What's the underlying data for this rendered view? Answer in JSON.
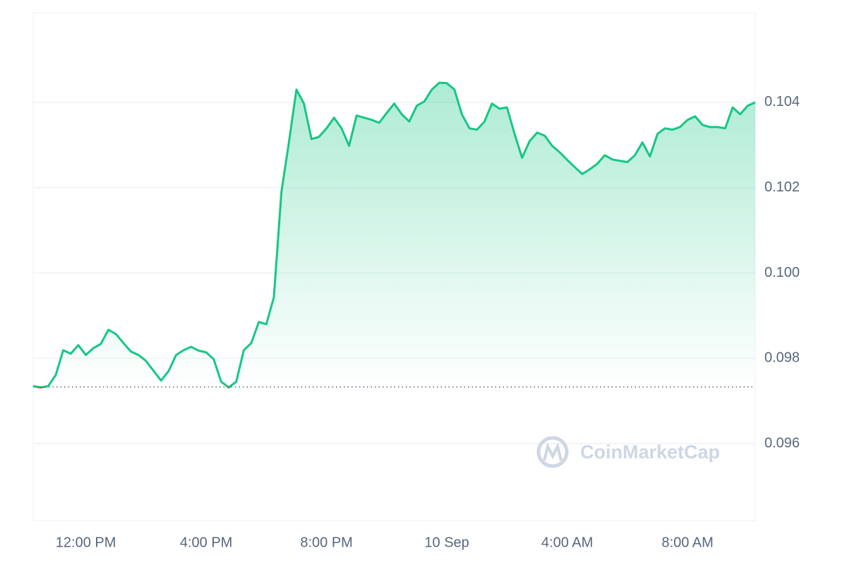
{
  "chart_data": {
    "type": "line",
    "watermark": "CoinMarketCap",
    "categories": [
      null,
      null,
      null,
      null,
      null,
      null,
      null,
      "12:00 PM",
      null,
      null,
      null,
      null,
      null,
      null,
      null,
      null,
      null,
      null,
      null,
      null,
      null,
      null,
      null,
      "4:00 PM",
      null,
      null,
      null,
      null,
      null,
      null,
      null,
      null,
      null,
      null,
      null,
      null,
      null,
      null,
      null,
      "8:00 PM",
      null,
      null,
      null,
      null,
      null,
      null,
      null,
      null,
      null,
      null,
      null,
      null,
      null,
      null,
      null,
      "10 Sep",
      null,
      null,
      null,
      null,
      null,
      null,
      null,
      null,
      null,
      null,
      null,
      null,
      null,
      null,
      null,
      "4:00 AM",
      null,
      null,
      null,
      null,
      null,
      null,
      null,
      null,
      null,
      null,
      null,
      null,
      null,
      null,
      null,
      "8:00 AM",
      null,
      null,
      null,
      null,
      null,
      null,
      null,
      null,
      null
    ],
    "values": [
      0.09735,
      0.09732,
      0.09735,
      0.09761,
      0.09819,
      0.09811,
      0.09831,
      0.09808,
      0.09824,
      0.09834,
      0.09867,
      0.09857,
      0.09836,
      0.09816,
      0.09808,
      0.09794,
      0.09771,
      0.09748,
      0.0977,
      0.09808,
      0.09819,
      0.09827,
      0.09818,
      0.09814,
      0.09798,
      0.09745,
      0.09732,
      0.09745,
      0.09819,
      0.09836,
      0.09885,
      0.0988,
      0.09943,
      0.1019,
      0.10306,
      0.1043,
      0.10397,
      0.10314,
      0.10319,
      0.10339,
      0.10364,
      0.10339,
      0.10298,
      0.10369,
      0.10364,
      0.10359,
      0.10352,
      0.10375,
      0.10397,
      0.10372,
      0.10355,
      0.10392,
      0.10402,
      0.1043,
      0.10446,
      0.10445,
      0.1043,
      0.10372,
      0.10339,
      0.10336,
      0.10355,
      0.10397,
      0.10385,
      0.10388,
      0.10326,
      0.1027,
      0.10309,
      0.10329,
      0.10322,
      0.10298,
      0.10283,
      0.10265,
      0.10248,
      0.10232,
      0.10243,
      0.10256,
      0.10276,
      0.10266,
      0.10263,
      0.1026,
      0.10276,
      0.10306,
      0.10273,
      0.10326,
      0.10339,
      0.10336,
      0.10342,
      0.10359,
      0.10367,
      0.10347,
      0.10342,
      0.10342,
      0.10339,
      0.10388,
      0.10372,
      0.10392,
      0.104
    ],
    "baseline": 0.09733,
    "color": "#16c784",
    "down_color": "#ea3943",
    "ylim": [
      0.0942,
      0.1061
    ],
    "yticks": [
      0.096,
      0.098,
      {
        "value": 0.1,
        "label": "0.100"
      },
      0.102,
      0.104
    ],
    "grid": true
  }
}
